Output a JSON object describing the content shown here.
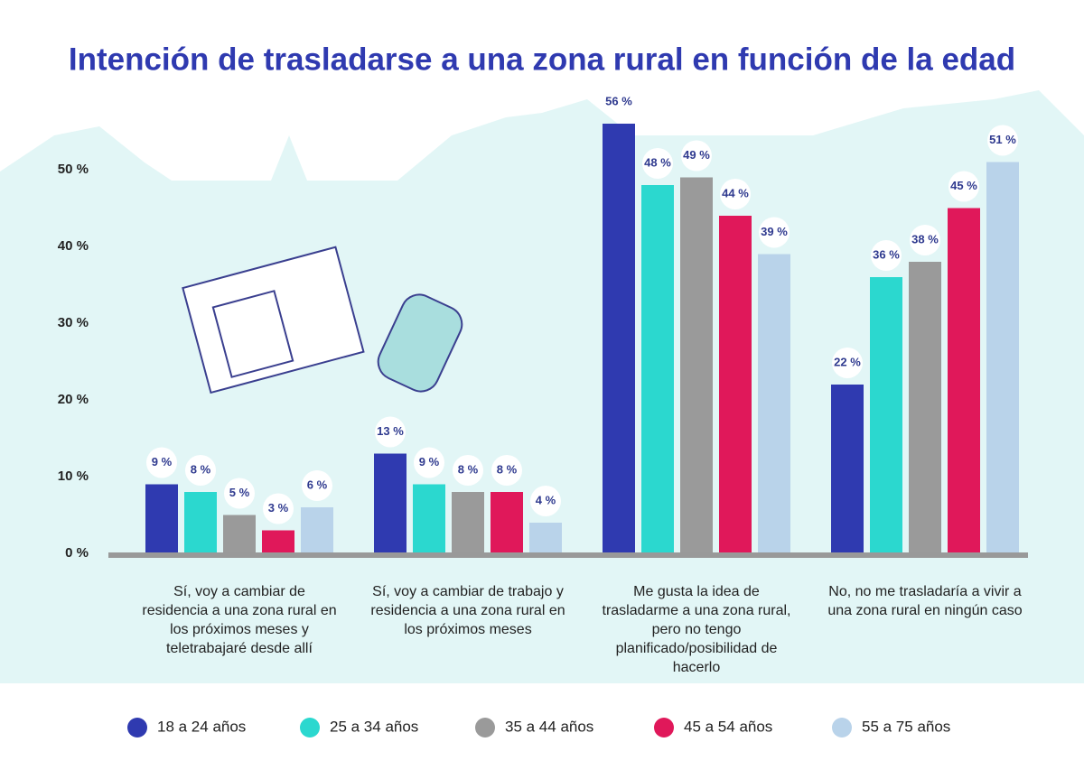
{
  "chart_data": {
    "type": "bar",
    "title": "Intención de trasladarse a una zona rural en función de la edad",
    "categories": [
      "Sí, voy a cambiar de residencia a una zona rural en los próximos meses y teletrabajaré desde allí",
      "Sí, voy a cambiar de trabajo y residencia a una zona rural en los próximos meses",
      "Me gusta la idea de trasladarme a una zona rural, pero no tengo planificado/posibilidad de hacerlo",
      "No, no me trasladaría a vivir a una zona rural en ningún caso"
    ],
    "series": [
      {
        "name": "18 a 24 años",
        "color": "#2f3ab0",
        "values": [
          9,
          13,
          56,
          22
        ],
        "value_labels": [
          "9 %",
          "13 %",
          "56 %",
          "22 %"
        ]
      },
      {
        "name": "25 a 34 años",
        "color": "#2bd8cf",
        "values": [
          8,
          9,
          48,
          36
        ],
        "value_labels": [
          "8 %",
          "9 %",
          "48 %",
          "36 %"
        ]
      },
      {
        "name": "35 a 44 años",
        "color": "#9a9a9a",
        "values": [
          5,
          8,
          49,
          38
        ],
        "value_labels": [
          "5 %",
          "8 %",
          "49 %",
          "38 %"
        ]
      },
      {
        "name": "45 a 54 años",
        "color": "#e0185a",
        "values": [
          3,
          8,
          44,
          45
        ],
        "value_labels": [
          "3 %",
          "8 %",
          "44 %",
          "45 %"
        ]
      },
      {
        "name": "55 a 75 años",
        "color": "#b9d3ea",
        "values": [
          6,
          4,
          39,
          51
        ],
        "value_labels": [
          "6 %",
          "4 %",
          "39 %",
          "51 %"
        ]
      }
    ],
    "ylim": [
      0,
      60
    ],
    "yticks": [
      {
        "value": 0,
        "label": "0 %"
      },
      {
        "value": 10,
        "label": "10 %"
      },
      {
        "value": 20,
        "label": "20 %"
      },
      {
        "value": 30,
        "label": "30 %"
      },
      {
        "value": 40,
        "label": "40 %"
      },
      {
        "value": 50,
        "label": "50 %"
      }
    ]
  }
}
